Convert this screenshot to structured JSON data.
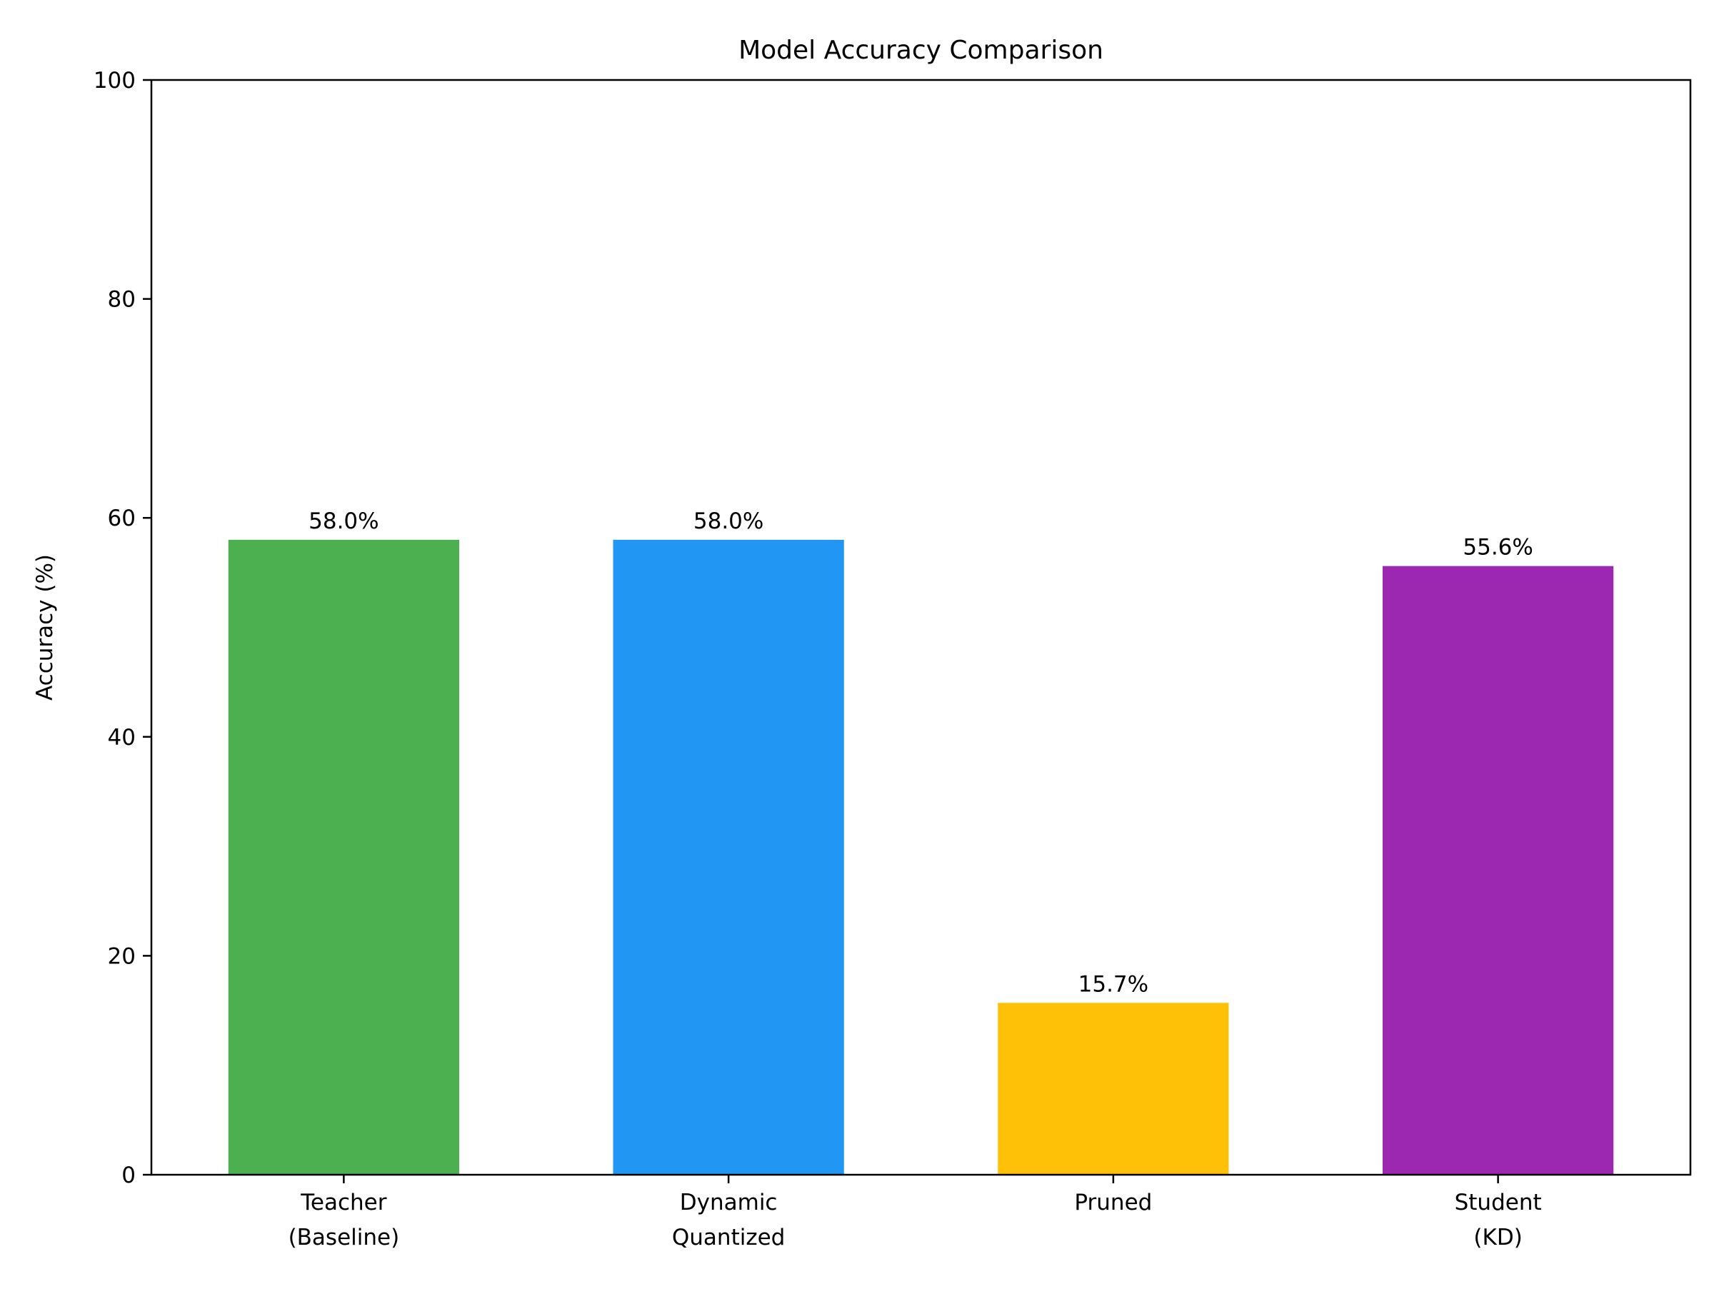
{
  "chart_data": {
    "type": "bar",
    "title": "Model Accuracy Comparison",
    "xlabel": "",
    "ylabel": "Accuracy (%)",
    "ylim": [
      0,
      100
    ],
    "yticks": [
      0,
      20,
      40,
      60,
      80,
      100
    ],
    "categories": [
      [
        "Teacher",
        "(Baseline)"
      ],
      [
        "Dynamic",
        "Quantized"
      ],
      [
        "Pruned"
      ],
      [
        "Student",
        "(KD)"
      ]
    ],
    "values": [
      58.0,
      58.0,
      15.7,
      55.6
    ],
    "value_labels": [
      "58.0%",
      "58.0%",
      "15.7%",
      "55.6%"
    ],
    "colors": [
      "#4caf50",
      "#2196f3",
      "#ffc107",
      "#9c27b0"
    ],
    "grid": false,
    "legend": "none"
  }
}
